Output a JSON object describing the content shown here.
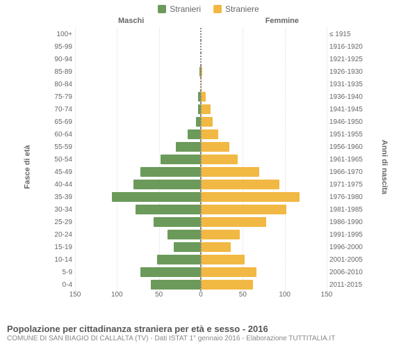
{
  "legend": [
    {
      "label": "Stranieri",
      "color": "#6b9a5b"
    },
    {
      "label": "Straniere",
      "color": "#f2b844"
    }
  ],
  "group_labels": {
    "male": "Maschi",
    "female": "Femmine"
  },
  "axis_labels": {
    "age": "Fasce di età",
    "birth": "Anni di nascita"
  },
  "colors": {
    "male": "#6b9a5b",
    "female": "#f2b844",
    "background": "#ffffff",
    "text": "#666666",
    "grid": "#dddddd",
    "center_line": "#888888"
  },
  "xaxis": {
    "max": 150,
    "ticks": [
      150,
      100,
      50,
      0,
      50,
      100,
      150
    ]
  },
  "fontsize": {
    "axis": 10,
    "legend": 12,
    "title": 13,
    "source": 10
  },
  "rows": [
    {
      "age": "100+",
      "birth": "≤ 1915",
      "m": 0,
      "f": 0
    },
    {
      "age": "95-99",
      "birth": "1916-1920",
      "m": 0,
      "f": 0
    },
    {
      "age": "90-94",
      "birth": "1921-1925",
      "m": 0,
      "f": 0
    },
    {
      "age": "85-89",
      "birth": "1926-1930",
      "m": 2,
      "f": 2
    },
    {
      "age": "80-84",
      "birth": "1931-1935",
      "m": 0,
      "f": 1
    },
    {
      "age": "75-79",
      "birth": "1936-1940",
      "m": 3,
      "f": 6
    },
    {
      "age": "70-74",
      "birth": "1941-1945",
      "m": 3,
      "f": 12
    },
    {
      "age": "65-69",
      "birth": "1946-1950",
      "m": 6,
      "f": 14
    },
    {
      "age": "60-64",
      "birth": "1951-1955",
      "m": 16,
      "f": 21
    },
    {
      "age": "55-59",
      "birth": "1956-1960",
      "m": 30,
      "f": 34
    },
    {
      "age": "50-54",
      "birth": "1961-1965",
      "m": 48,
      "f": 44
    },
    {
      "age": "45-49",
      "birth": "1966-1970",
      "m": 72,
      "f": 70
    },
    {
      "age": "40-44",
      "birth": "1971-1975",
      "m": 80,
      "f": 94
    },
    {
      "age": "35-39",
      "birth": "1976-1980",
      "m": 106,
      "f": 118
    },
    {
      "age": "30-34",
      "birth": "1981-1985",
      "m": 78,
      "f": 102
    },
    {
      "age": "25-29",
      "birth": "1986-1990",
      "m": 56,
      "f": 78
    },
    {
      "age": "20-24",
      "birth": "1991-1995",
      "m": 40,
      "f": 46
    },
    {
      "age": "15-19",
      "birth": "1996-2000",
      "m": 32,
      "f": 36
    },
    {
      "age": "10-14",
      "birth": "2001-2005",
      "m": 52,
      "f": 52
    },
    {
      "age": "5-9",
      "birth": "2006-2010",
      "m": 72,
      "f": 66
    },
    {
      "age": "0-4",
      "birth": "2011-2015",
      "m": 60,
      "f": 62
    }
  ],
  "footer": {
    "title": "Popolazione per cittadinanza straniera per età e sesso - 2016",
    "source": "COMUNE DI SAN BIAGIO DI CALLALTA (TV) - Dati ISTAT 1° gennaio 2016 - Elaborazione TUTTITALIA.IT"
  }
}
